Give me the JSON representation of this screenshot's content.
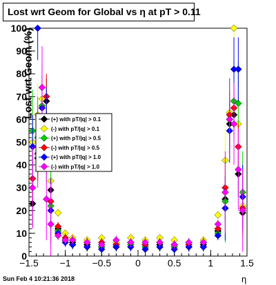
{
  "title": "Lost wrt Geom for Global vs   η at pT > 0.11",
  "footer": "Sun Feb  4 10:21:36 2018",
  "chart_data": {
    "type": "scatter",
    "title": "Lost wrt Geom for Global vs   η at pT > 0.11",
    "xlabel": "η",
    "ylabel": "Lost wrt Geom (%)",
    "xlim": [
      -1.5,
      1.5
    ],
    "ylim": [
      0,
      100
    ],
    "xticks": [
      "−1.5",
      "−1",
      "−0.5",
      "0",
      "0.5",
      "1",
      "1.5"
    ],
    "yticks": [
      "0",
      "10",
      "20",
      "30",
      "40",
      "50",
      "60",
      "70",
      "80",
      "90",
      "100"
    ],
    "legend_position": "left-middle",
    "series": [
      {
        "name": "(+) with pT/|q| > 0.1",
        "color": "#000000",
        "x": [
          -1.45,
          -1.38,
          -1.32,
          -1.26,
          -1.2,
          -1.1,
          -1.0,
          -0.9,
          -0.7,
          -0.5,
          -0.3,
          -0.1,
          0.1,
          0.3,
          0.5,
          0.7,
          0.9,
          1.1,
          1.2,
          1.26,
          1.32,
          1.38,
          1.44
        ],
        "y": [
          23,
          43,
          57,
          68,
          29,
          12,
          7,
          6,
          5,
          4,
          5,
          6,
          5,
          5,
          5,
          4,
          5,
          11,
          25,
          58,
          62,
          36,
          19
        ]
      },
      {
        "name": "(-) with pT/|q| > 0.1",
        "color": "#ffff00",
        "x": [
          -1.45,
          -1.38,
          -1.32,
          -1.26,
          -1.2,
          -1.1,
          -1.0,
          -0.9,
          -0.7,
          -0.5,
          -0.3,
          -0.1,
          0.1,
          0.3,
          0.5,
          0.7,
          0.9,
          1.1,
          1.2,
          1.26,
          1.32,
          1.38,
          1.44
        ],
        "y": [
          50,
          62,
          69,
          60,
          33,
          19,
          10,
          8,
          7,
          8,
          6,
          8,
          7,
          8,
          7,
          6,
          7,
          18,
          42,
          63,
          100,
          58,
          22
        ]
      },
      {
        "name": "(+) with pT/|q| > 0.5",
        "color": "#00cc00",
        "x": [
          -1.45,
          -1.38,
          -1.32,
          -1.26,
          -1.2,
          -1.1,
          -1.0,
          -0.9,
          -0.7,
          -0.5,
          -0.3,
          -0.1,
          0.1,
          0.3,
          0.5,
          0.7,
          0.9,
          1.1,
          1.2,
          1.26,
          1.32,
          1.38,
          1.44
        ],
        "y": [
          55,
          52,
          66,
          50,
          22,
          11,
          7,
          5,
          4,
          4,
          4,
          5,
          4,
          4,
          4,
          4,
          4,
          10,
          24,
          60,
          68,
          67,
          28
        ]
      },
      {
        "name": "(-) with pT/|q| > 0.5",
        "color": "#ff0000",
        "x": [
          -1.45,
          -1.38,
          -1.32,
          -1.26,
          -1.2,
          -1.1,
          -1.0,
          -0.9,
          -0.7,
          -0.5,
          -0.3,
          -0.1,
          0.1,
          0.3,
          0.5,
          0.7,
          0.9,
          1.1,
          1.2,
          1.26,
          1.32,
          1.38,
          1.44
        ],
        "y": [
          34,
          45,
          60,
          70,
          24,
          13,
          8,
          7,
          6,
          6,
          5,
          6,
          5,
          6,
          5,
          5,
          6,
          12,
          30,
          62,
          65,
          48,
          21
        ]
      },
      {
        "name": "(+) with pT/|q| > 1.0",
        "color": "#0000ff",
        "x": [
          -1.45,
          -1.38,
          -1.32,
          -1.26,
          -1.2,
          -1.1,
          -1.0,
          -0.9,
          -0.7,
          -0.5,
          -0.3,
          -0.1,
          0.1,
          0.3,
          0.5,
          0.7,
          0.9,
          1.1,
          1.2,
          1.26,
          1.32,
          1.38,
          1.44
        ],
        "y": [
          48,
          100,
          65,
          60,
          20,
          10,
          6,
          5,
          4,
          3,
          4,
          4,
          3,
          4,
          3,
          4,
          4,
          9,
          21,
          55,
          82,
          82,
          26
        ]
      },
      {
        "name": "(-) with pT/|q| > 1.0",
        "color": "#ff00ff",
        "x": [
          -1.45,
          -1.38,
          -1.32,
          -1.26,
          -1.2,
          -1.1,
          -1.0,
          -0.9,
          -0.7,
          -0.5,
          -0.3,
          -0.1,
          0.1,
          0.3,
          0.5,
          0.7,
          0.9,
          1.1,
          1.2,
          1.26,
          1.32,
          1.38,
          1.44
        ],
        "y": [
          30,
          48,
          74,
          25,
          14,
          9,
          7,
          7,
          6,
          5,
          7,
          6,
          6,
          6,
          5,
          6,
          6,
          14,
          28,
          60,
          58,
          38,
          20
        ]
      }
    ]
  }
}
